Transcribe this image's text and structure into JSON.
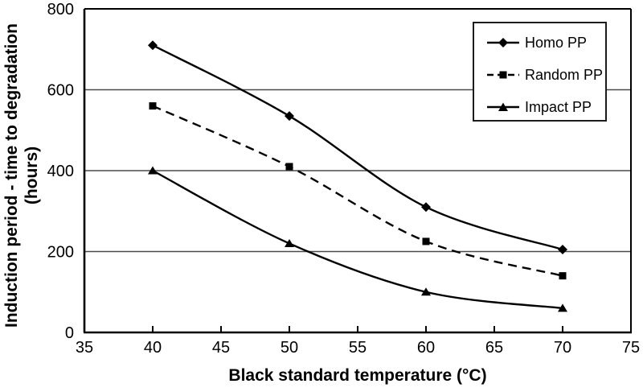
{
  "chart_data": {
    "type": "line",
    "title": "",
    "xlabel": "Black standard temperature (°C)",
    "ylabel": "Induction period - time to degradation (hours)",
    "ylabel_lines": [
      "Induction period - time to degradation",
      "(hours)"
    ],
    "x": [
      40,
      50,
      60,
      70
    ],
    "xlim": [
      35,
      75
    ],
    "ylim": [
      0,
      800
    ],
    "x_ticks": [
      35,
      40,
      45,
      50,
      55,
      60,
      65,
      70,
      75
    ],
    "y_ticks": [
      0,
      200,
      400,
      600,
      800
    ],
    "gridline_values": [
      200,
      400,
      600
    ],
    "grid": "horizontal-only",
    "legend_position": "top-right-inside",
    "series": [
      {
        "name": "Homo PP",
        "marker": "diamond",
        "line_style": "solid",
        "color": "#000000",
        "values": [
          710,
          535,
          310,
          205
        ]
      },
      {
        "name": "Random PP",
        "marker": "square",
        "line_style": "dashed",
        "color": "#000000",
        "values": [
          560,
          410,
          225,
          140
        ]
      },
      {
        "name": "Impact PP",
        "marker": "triangle",
        "line_style": "solid",
        "color": "#000000",
        "values": [
          400,
          220,
          100,
          60
        ]
      }
    ],
    "colors": {
      "line": "#000000",
      "grid": "#4a4a4a",
      "axis": "#000000",
      "text": "#000000",
      "background": "#ffffff"
    }
  }
}
